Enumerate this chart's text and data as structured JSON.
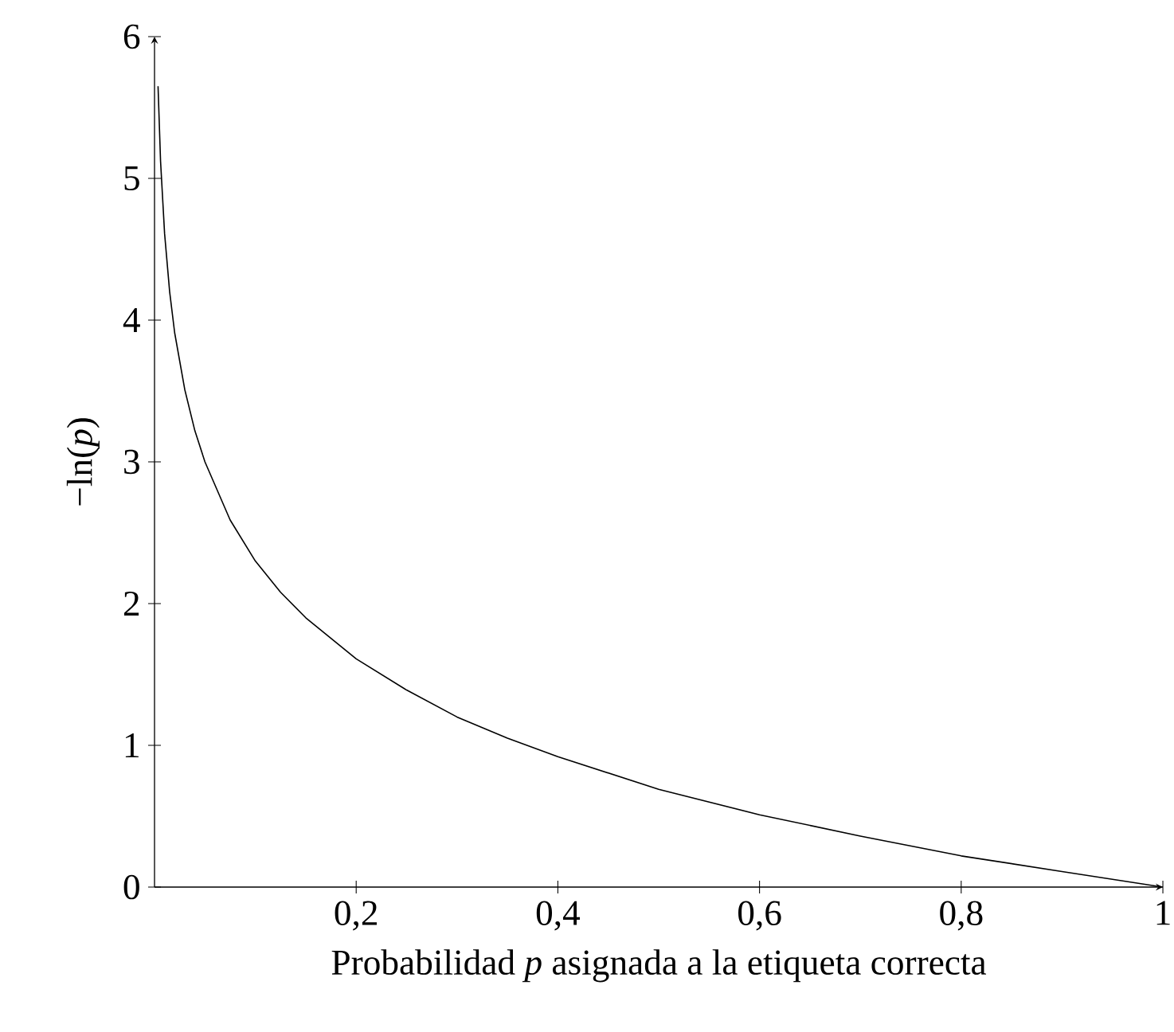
{
  "chart_data": {
    "type": "line",
    "xlabel": "Probabilidad *p* asignada a la etiqueta correcta",
    "ylabel": "−ln(*p*)",
    "x": [
      0.0035,
      0.006,
      0.01,
      0.015,
      0.02,
      0.03,
      0.04,
      0.05,
      0.075,
      0.1,
      0.125,
      0.15,
      0.2,
      0.25,
      0.3,
      0.35,
      0.4,
      0.5,
      0.6,
      0.7,
      0.8,
      0.9,
      1.0
    ],
    "series": [
      {
        "color": "#000000",
        "values": [
          5.65,
          5.12,
          4.61,
          4.2,
          3.91,
          3.51,
          3.22,
          3.0,
          2.59,
          2.3,
          2.08,
          1.9,
          1.61,
          1.39,
          1.2,
          1.05,
          0.92,
          0.69,
          0.51,
          0.36,
          0.22,
          0.11,
          0.0
        ]
      }
    ],
    "xlim": [
      0,
      1
    ],
    "ylim": [
      0,
      6
    ],
    "xticks": [
      {
        "value": 0.2,
        "label": "0,2"
      },
      {
        "value": 0.4,
        "label": "0,4"
      },
      {
        "value": 0.6,
        "label": "0,6"
      },
      {
        "value": 0.8,
        "label": "0,8"
      },
      {
        "value": 1,
        "label": "1"
      }
    ],
    "yticks": [
      0,
      1,
      2,
      3,
      4,
      5,
      6
    ],
    "grid": false,
    "marker": "none",
    "line_style": "solid"
  }
}
